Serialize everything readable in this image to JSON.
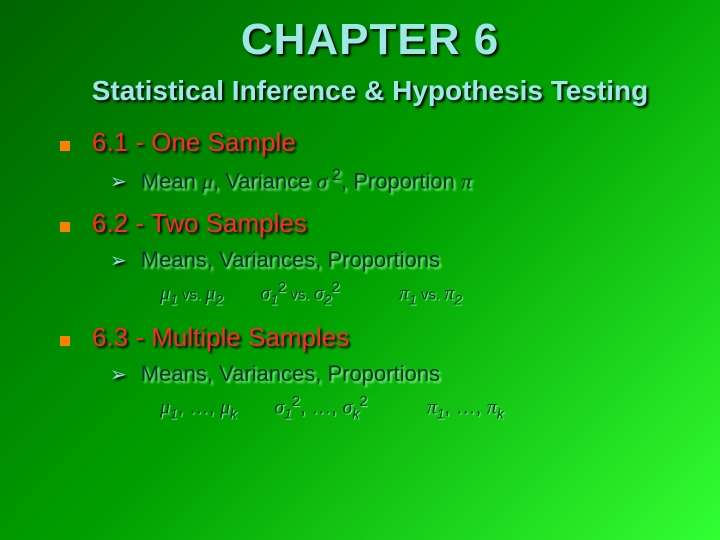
{
  "chapter_title": "CHAPTER 6",
  "subtitle": "Statistical Inference & Hypothesis Testing",
  "section1": {
    "title": "6.1 - One Sample",
    "sub_prefix_mean": "Mean ",
    "sub_mid1": ",   Variance ",
    "sub_mid2": ",   Proportion "
  },
  "section2": {
    "title": "6.2 - Two Samples",
    "sub": "Means,    Variances,   Proportions",
    "vs1": " vs. ",
    "vs2": " vs. ",
    "vs3": " vs. "
  },
  "section3": {
    "title": "6.3 - Multiple Samples",
    "sub": "Means,     Variances,     Proportions",
    "dots": ", …, "
  },
  "colors": {
    "title_color": "#9fe8e8",
    "section_color": "#ff2a2a",
    "bullet_color": "#ff7f00",
    "body_color": "#003333"
  }
}
